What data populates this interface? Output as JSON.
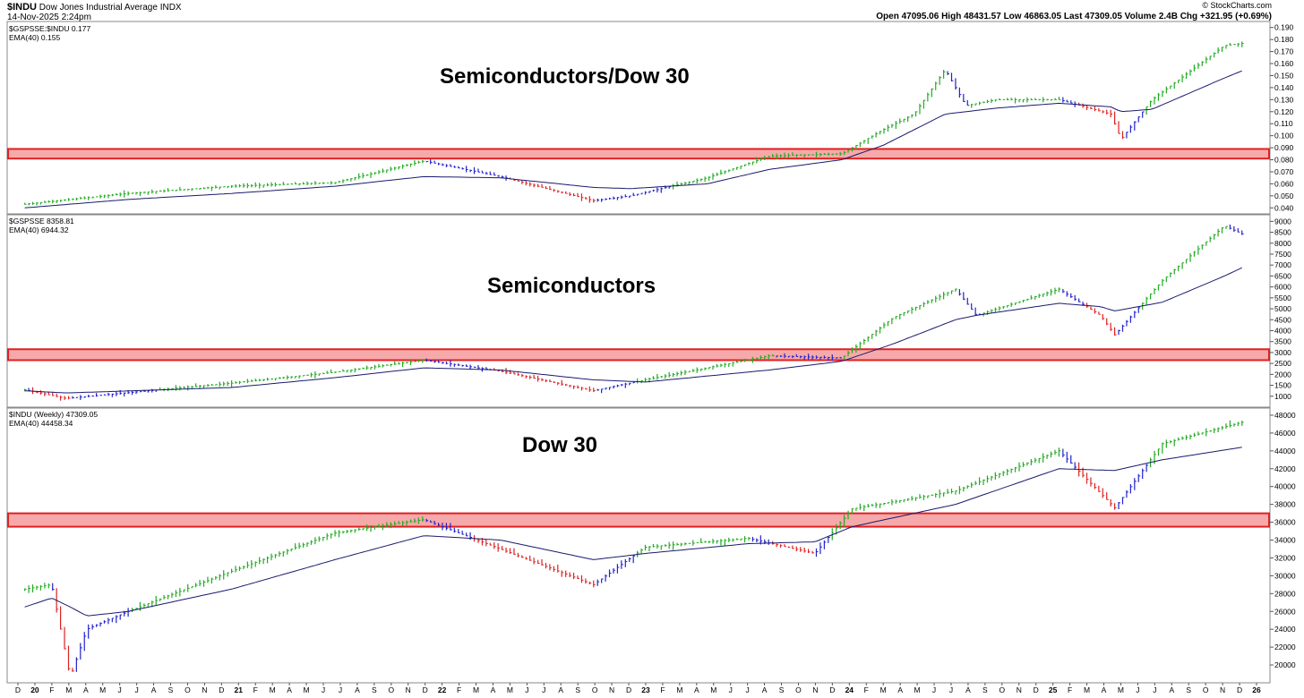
{
  "header": {
    "symbol": "$INDU",
    "name": "Dow Jones Industrial Average  INDX",
    "date": "14-Nov-2025 2:24pm",
    "watermark": "© StockCharts.com",
    "quote": "Open 47095.06  High 48431.57  Low 46863.05  Last 47309.05  Volume 2.4B  Chg +321.95 (+0.69%)"
  },
  "colors": {
    "up": "#22aa22",
    "down": "#dd2222",
    "neutral": "#2222cc",
    "ema": "#1a1a6e",
    "band_fill": "#f6a9aa",
    "band_edge": "#e02020"
  },
  "chart_data": [
    {
      "type": "line",
      "title": "Semiconductors/Dow 30",
      "legend": [
        "$GSPSSE:$INDU 0.177",
        "EMA(40) 0.155"
      ],
      "y_ticks": [
        "0.190",
        "0.180",
        "0.170",
        "0.160",
        "0.150",
        "0.140",
        "0.130",
        "0.120",
        "0.110",
        "0.100",
        "0.090",
        "0.080",
        "0.070",
        "0.060",
        "0.050",
        "0.040"
      ],
      "ylim": [
        0.035,
        0.195
      ],
      "support_band": [
        0.081,
        0.089
      ],
      "x": [
        2020.0,
        2020.5,
        2021.0,
        2021.5,
        2021.93,
        2022.3,
        2022.75,
        2022.93,
        2023.3,
        2023.6,
        2023.95,
        2024.15,
        2024.3,
        2024.45,
        2024.55,
        2024.7,
        2025.0,
        2025.25,
        2025.3,
        2025.45,
        2025.8,
        2025.9
      ],
      "y": [
        0.043,
        0.052,
        0.058,
        0.061,
        0.079,
        0.066,
        0.046,
        0.05,
        0.065,
        0.083,
        0.085,
        0.105,
        0.118,
        0.155,
        0.125,
        0.13,
        0.13,
        0.118,
        0.097,
        0.13,
        0.175,
        0.177
      ],
      "ema": [
        0.04,
        0.047,
        0.052,
        0.058,
        0.066,
        0.065,
        0.057,
        0.056,
        0.06,
        0.072,
        0.08,
        0.092,
        0.105,
        0.118,
        0.12,
        0.123,
        0.127,
        0.124,
        0.12,
        0.122,
        0.148,
        0.155
      ]
    },
    {
      "type": "line",
      "title": "Semiconductors",
      "legend": [
        "$GSPSSE 8358.81",
        "EMA(40) 6944.32"
      ],
      "y_ticks": [
        "9000",
        "8500",
        "8000",
        "7500",
        "7000",
        "6500",
        "6000",
        "5500",
        "5000",
        "4500",
        "4000",
        "3500",
        "3000",
        "2500",
        "2000",
        "1500",
        "1000"
      ],
      "ylim": [
        500,
        9300
      ],
      "support_band": [
        2650,
        3150
      ],
      "x": [
        2020.0,
        2020.2,
        2021.0,
        2021.5,
        2021.93,
        2022.3,
        2022.75,
        2023.0,
        2023.6,
        2023.95,
        2024.2,
        2024.5,
        2024.6,
        2025.0,
        2025.2,
        2025.27,
        2025.5,
        2025.8,
        2025.9
      ],
      "y": [
        1300,
        900,
        1600,
        2100,
        2650,
        2150,
        1250,
        1750,
        2850,
        2750,
        4600,
        5900,
        4700,
        5900,
        4700,
        3800,
        6300,
        8800,
        8358.81
      ],
      "ema": [
        1250,
        1150,
        1400,
        1850,
        2300,
        2200,
        1750,
        1650,
        2200,
        2600,
        3400,
        4500,
        4700,
        5250,
        5100,
        4900,
        5300,
        6500,
        6944.32
      ]
    },
    {
      "type": "line",
      "title": "Dow 30",
      "legend": [
        "$INDU (Weekly) 47309.05",
        "EMA(40) 44458.34"
      ],
      "y_ticks": [
        "48000",
        "46000",
        "44000",
        "42000",
        "40000",
        "38000",
        "36000",
        "34000",
        "32000",
        "30000",
        "28000",
        "26000",
        "24000",
        "22000",
        "20000"
      ],
      "ylim": [
        18000,
        48800
      ],
      "support_band": [
        35500,
        37000
      ],
      "x": [
        2020.0,
        2020.13,
        2020.22,
        2020.3,
        2020.5,
        2021.0,
        2021.5,
        2021.93,
        2022.3,
        2022.75,
        2023.0,
        2023.5,
        2023.82,
        2024.0,
        2024.5,
        2025.0,
        2025.27,
        2025.5,
        2025.9
      ],
      "y": [
        28500,
        29000,
        18600,
        24000,
        26000,
        30500,
        34800,
        36300,
        33000,
        29000,
        33200,
        34200,
        32500,
        37500,
        39500,
        44000,
        37600,
        44800,
        47309.05
      ],
      "ema": [
        26500,
        27500,
        26500,
        25500,
        26000,
        28500,
        31800,
        34500,
        34000,
        31800,
        32500,
        33600,
        33800,
        35500,
        38000,
        42000,
        41800,
        43000,
        44458.34
      ]
    }
  ],
  "x_axis": {
    "labels": [
      "D",
      "20",
      "F",
      "M",
      "A",
      "M",
      "J",
      "J",
      "A",
      "S",
      "O",
      "N",
      "D",
      "21",
      "F",
      "M",
      "A",
      "M",
      "J",
      "J",
      "A",
      "S",
      "O",
      "N",
      "D",
      "22",
      "F",
      "M",
      "A",
      "M",
      "J",
      "J",
      "A",
      "S",
      "O",
      "N",
      "D",
      "23",
      "F",
      "M",
      "A",
      "M",
      "J",
      "J",
      "A",
      "S",
      "O",
      "N",
      "D",
      "24",
      "F",
      "M",
      "A",
      "M",
      "J",
      "J",
      "A",
      "S",
      "O",
      "N",
      "D",
      "25",
      "F",
      "M",
      "A",
      "M",
      "J",
      "J",
      "A",
      "S",
      "O",
      "N",
      "D",
      "26"
    ],
    "bold": [
      "20",
      "21",
      "22",
      "23",
      "24",
      "25",
      "26"
    ]
  }
}
